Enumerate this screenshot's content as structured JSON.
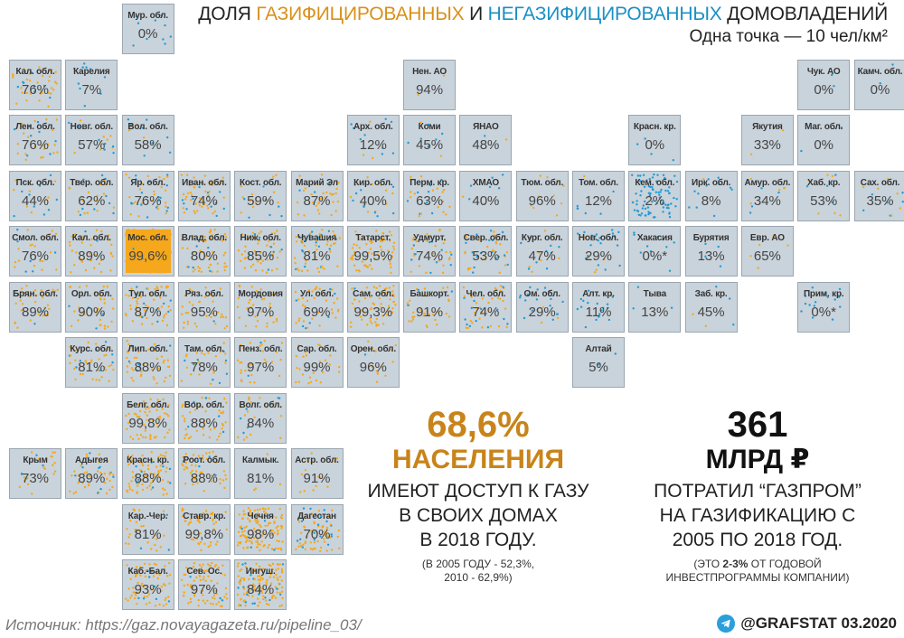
{
  "header": {
    "title_part1": "ДОЛЯ ",
    "title_gas": "ГАЗИФИЦИРОВАННЫХ",
    "title_part2": " И ",
    "title_nogas": "НЕГАЗИФИЦИРОВАННЫХ",
    "title_part3": " ДОМОВЛАДЕНИЙ",
    "subtitle": "Одна точка — 10 чел/км²"
  },
  "colors": {
    "gasified": "#f5a81c",
    "not_gasified": "#1e9bd7",
    "tile_bg": "#c9d3db",
    "accent_orange": "#c8841a"
  },
  "chart_data": {
    "type": "tile-map",
    "value_label": "доля газифицированных домовладений, %",
    "regions": [
      {
        "name": "Мур. обл.",
        "value": "0%",
        "col": 2,
        "row": 0,
        "gas": 0,
        "density": 10
      },
      {
        "name": "Кал. обл.",
        "value": "76%",
        "col": 0,
        "row": 1,
        "gas": 0.76,
        "density": 40
      },
      {
        "name": "Карелия",
        "value": "7%",
        "col": 1,
        "row": 1,
        "gas": 0.07,
        "density": 10
      },
      {
        "name": "Нен. АО",
        "value": "94%",
        "col": 7,
        "row": 1,
        "gas": 0.94,
        "density": 2
      },
      {
        "name": "Чук. АО",
        "value": "0%",
        "col": 14,
        "row": 1,
        "gas": 0,
        "density": 2
      },
      {
        "name": "Камч. обл.",
        "value": "0%",
        "col": 15,
        "row": 1,
        "gas": 0,
        "density": 2
      },
      {
        "name": "Лен. обл.",
        "value": "76%",
        "col": 0,
        "row": 2,
        "gas": 0.76,
        "density": 30
      },
      {
        "name": "Новг. обл.",
        "value": "57%",
        "col": 1,
        "row": 2,
        "gas": 0.57,
        "density": 15
      },
      {
        "name": "Вол. обл.",
        "value": "58%",
        "col": 2,
        "row": 2,
        "gas": 0.58,
        "density": 12
      },
      {
        "name": "Арх. обл.",
        "value": "12%",
        "col": 6,
        "row": 2,
        "gas": 0.12,
        "density": 12
      },
      {
        "name": "Коми",
        "value": "45%",
        "col": 7,
        "row": 2,
        "gas": 0.45,
        "density": 8
      },
      {
        "name": "ЯНАО",
        "value": "48%",
        "col": 8,
        "row": 2,
        "gas": 0.48,
        "density": 2
      },
      {
        "name": "Красн. кр.",
        "value": "0%",
        "col": 11,
        "row": 2,
        "gas": 0,
        "density": 4
      },
      {
        "name": "Якутия",
        "value": "33%",
        "col": 13,
        "row": 2,
        "gas": 0.33,
        "density": 2
      },
      {
        "name": "Маг. обл.",
        "value": "0%",
        "col": 14,
        "row": 2,
        "gas": 0,
        "density": 2
      },
      {
        "name": "Пск. обл.",
        "value": "44%",
        "col": 0,
        "row": 3,
        "gas": 0.44,
        "density": 18
      },
      {
        "name": "Твер. обл.",
        "value": "62%",
        "col": 1,
        "row": 3,
        "gas": 0.62,
        "density": 25
      },
      {
        "name": "Яр. обл.",
        "value": "76%",
        "col": 2,
        "row": 3,
        "gas": 0.76,
        "density": 40
      },
      {
        "name": "Иван. обл.",
        "value": "74%",
        "col": 3,
        "row": 3,
        "gas": 0.74,
        "density": 55
      },
      {
        "name": "Кост. обл.",
        "value": "59%",
        "col": 4,
        "row": 3,
        "gas": 0.59,
        "density": 20
      },
      {
        "name": "Марий Эл",
        "value": "87%",
        "col": 5,
        "row": 3,
        "gas": 0.87,
        "density": 35
      },
      {
        "name": "Кир. обл.",
        "value": "40%",
        "col": 6,
        "row": 3,
        "gas": 0.4,
        "density": 20
      },
      {
        "name": "Перм. кр.",
        "value": "63%",
        "col": 7,
        "row": 3,
        "gas": 0.63,
        "density": 25
      },
      {
        "name": "ХМАО",
        "value": "40%",
        "col": 8,
        "row": 3,
        "gas": 0.4,
        "density": 8
      },
      {
        "name": "Тюм. обл.",
        "value": "96%",
        "col": 9,
        "row": 3,
        "gas": 0.96,
        "density": 10
      },
      {
        "name": "Том. обл.",
        "value": "12%",
        "col": 10,
        "row": 3,
        "gas": 0.12,
        "density": 8
      },
      {
        "name": "Кем. обл.",
        "value": "2%",
        "col": 11,
        "row": 3,
        "gas": 0.02,
        "density": 80
      },
      {
        "name": "Ирк. обл.",
        "value": "8%",
        "col": 12,
        "row": 3,
        "gas": 0.08,
        "density": 12
      },
      {
        "name": "Амур. обл.",
        "value": "34%",
        "col": 13,
        "row": 3,
        "gas": 0.34,
        "density": 10
      },
      {
        "name": "Хаб. кр.",
        "value": "53%",
        "col": 14,
        "row": 3,
        "gas": 0.53,
        "density": 10
      },
      {
        "name": "Сах. обл.",
        "value": "35%",
        "col": 15,
        "row": 3,
        "gas": 0.35,
        "density": 12
      },
      {
        "name": "Смол. обл.",
        "value": "76%",
        "col": 0,
        "row": 4,
        "gas": 0.76,
        "density": 25
      },
      {
        "name": "Кал. обл.",
        "value": "89%",
        "col": 1,
        "row": 4,
        "gas": 0.89,
        "density": 35
      },
      {
        "name": "Мос. обл.",
        "value": "99,6%",
        "col": 2,
        "row": 4,
        "gas": 0.996,
        "density": 300
      },
      {
        "name": "Влад. обл.",
        "value": "80%",
        "col": 3,
        "row": 4,
        "gas": 0.8,
        "density": 50
      },
      {
        "name": "Ниж. обл.",
        "value": "85%",
        "col": 4,
        "row": 4,
        "gas": 0.85,
        "density": 55
      },
      {
        "name": "Чувашия",
        "value": "81%",
        "col": 5,
        "row": 4,
        "gas": 0.81,
        "density": 60
      },
      {
        "name": "Татарст.",
        "value": "99,5%",
        "col": 6,
        "row": 4,
        "gas": 0.995,
        "density": 60
      },
      {
        "name": "Удмурт.",
        "value": "74%",
        "col": 7,
        "row": 4,
        "gas": 0.74,
        "density": 35
      },
      {
        "name": "Свер. обл.",
        "value": "53%",
        "col": 8,
        "row": 4,
        "gas": 0.53,
        "density": 40
      },
      {
        "name": "Кург. обл.",
        "value": "47%",
        "col": 9,
        "row": 4,
        "gas": 0.47,
        "density": 15
      },
      {
        "name": "Нов. обл.",
        "value": "29%",
        "col": 10,
        "row": 4,
        "gas": 0.29,
        "density": 25
      },
      {
        "name": "Хакасия",
        "value": "0%*",
        "col": 11,
        "row": 4,
        "gas": 0,
        "density": 10
      },
      {
        "name": "Бурятия",
        "value": "13%",
        "col": 12,
        "row": 4,
        "gas": 0.13,
        "density": 4
      },
      {
        "name": "Евр. АО",
        "value": "65%",
        "col": 13,
        "row": 4,
        "gas": 0.65,
        "density": 5
      },
      {
        "name": "Брян. обл.",
        "value": "89%",
        "col": 0,
        "row": 5,
        "gas": 0.89,
        "density": 35
      },
      {
        "name": "Орл. обл.",
        "value": "90%",
        "col": 1,
        "row": 5,
        "gas": 0.9,
        "density": 35
      },
      {
        "name": "Тул. обл.",
        "value": "87%",
        "col": 2,
        "row": 5,
        "gas": 0.87,
        "density": 60
      },
      {
        "name": "Ряз. обл.",
        "value": "95%",
        "col": 3,
        "row": 5,
        "gas": 0.95,
        "density": 35
      },
      {
        "name": "Мордовия",
        "value": "97%",
        "col": 4,
        "row": 5,
        "gas": 0.97,
        "density": 30
      },
      {
        "name": "Ул. обл.",
        "value": "69%",
        "col": 5,
        "row": 5,
        "gas": 0.69,
        "density": 40
      },
      {
        "name": "Сам. обл.",
        "value": "99,3%",
        "col": 6,
        "row": 5,
        "gas": 0.993,
        "density": 60
      },
      {
        "name": "Башкорт.",
        "value": "91%",
        "col": 7,
        "row": 5,
        "gas": 0.91,
        "density": 35
      },
      {
        "name": "Чел. обл.",
        "value": "74%",
        "col": 8,
        "row": 5,
        "gas": 0.74,
        "density": 45
      },
      {
        "name": "Ом. обл.",
        "value": "29%",
        "col": 9,
        "row": 5,
        "gas": 0.29,
        "density": 20
      },
      {
        "name": "Алт. кр.",
        "value": "11%",
        "col": 10,
        "row": 5,
        "gas": 0.11,
        "density": 20
      },
      {
        "name": "Тыва",
        "value": "13%",
        "col": 11,
        "row": 5,
        "gas": 0.13,
        "density": 3
      },
      {
        "name": "Заб. кр.",
        "value": "45%",
        "col": 12,
        "row": 5,
        "gas": 0.45,
        "density": 5
      },
      {
        "name": "Прим. кр.",
        "value": "0%*",
        "col": 14,
        "row": 5,
        "gas": 0,
        "density": 15
      },
      {
        "name": "Курс. обл.",
        "value": "81%",
        "col": 1,
        "row": 6,
        "gas": 0.81,
        "density": 40
      },
      {
        "name": "Лип. обл.",
        "value": "88%",
        "col": 2,
        "row": 6,
        "gas": 0.88,
        "density": 45
      },
      {
        "name": "Там. обл.",
        "value": "78%",
        "col": 3,
        "row": 6,
        "gas": 0.78,
        "density": 30
      },
      {
        "name": "Пенз. обл.",
        "value": "97%",
        "col": 4,
        "row": 6,
        "gas": 0.97,
        "density": 30
      },
      {
        "name": "Сар. обл.",
        "value": "99%",
        "col": 5,
        "row": 6,
        "gas": 0.99,
        "density": 25
      },
      {
        "name": "Орен. обл.",
        "value": "96%",
        "col": 6,
        "row": 6,
        "gas": 0.96,
        "density": 15
      },
      {
        "name": "Алтай",
        "value": "5%",
        "col": 10,
        "row": 6,
        "gas": 0.05,
        "density": 3
      },
      {
        "name": "Белг. обл.",
        "value": "99,8%",
        "col": 2,
        "row": 7,
        "gas": 0.998,
        "density": 60
      },
      {
        "name": "Вор. обл.",
        "value": "88%",
        "col": 3,
        "row": 7,
        "gas": 0.88,
        "density": 45
      },
      {
        "name": "Волг. обл.",
        "value": "84%",
        "col": 4,
        "row": 7,
        "gas": 0.84,
        "density": 25
      },
      {
        "name": "Крым",
        "value": "73%",
        "col": 0,
        "row": 8,
        "gas": 0.73,
        "density": 25
      },
      {
        "name": "Адыгея",
        "value": "89%",
        "col": 1,
        "row": 8,
        "gas": 0.89,
        "density": 45
      },
      {
        "name": "Красн. кр.",
        "value": "88%",
        "col": 2,
        "row": 8,
        "gas": 0.88,
        "density": 75
      },
      {
        "name": "Рост. обл.",
        "value": "88%",
        "col": 3,
        "row": 8,
        "gas": 0.88,
        "density": 50
      },
      {
        "name": "Калмык.",
        "value": "81%",
        "col": 4,
        "row": 8,
        "gas": 0.81,
        "density": 4
      },
      {
        "name": "Астр. обл.",
        "value": "91%",
        "col": 5,
        "row": 8,
        "gas": 0.91,
        "density": 15
      },
      {
        "name": "Кар.-Чер.",
        "value": "81%",
        "col": 2,
        "row": 9,
        "gas": 0.81,
        "density": 30
      },
      {
        "name": "Ставр. кр.",
        "value": "99,8%",
        "col": 3,
        "row": 9,
        "gas": 0.998,
        "density": 45
      },
      {
        "name": "Чечня",
        "value": "98%",
        "col": 4,
        "row": 9,
        "gas": 0.98,
        "density": 120
      },
      {
        "name": "Дагестан",
        "value": "70%",
        "col": 5,
        "row": 9,
        "gas": 0.7,
        "density": 70
      },
      {
        "name": "Каб.-Бал.",
        "value": "93%",
        "col": 2,
        "row": 10,
        "gas": 0.93,
        "density": 70
      },
      {
        "name": "Сев. Ос.",
        "value": "97%",
        "col": 3,
        "row": 10,
        "gas": 0.97,
        "density": 80
      },
      {
        "name": "Ингуш.",
        "value": "84%",
        "col": 4,
        "row": 10,
        "gas": 0.84,
        "density": 130
      }
    ]
  },
  "stats": {
    "left_big": "68,6%",
    "left_big2": "НАСЕЛЕНИЯ",
    "left_line1": "ИМЕЮТ ДОСТУП К ГАЗУ",
    "left_line2": "В СВОИХ ДОМАХ",
    "left_line3": "В 2018 ГОДУ.",
    "left_note1": "(В 2005 ГОДУ - 52,3%,",
    "left_note2": "2010 - 62,9%)",
    "right_big": "361",
    "right_big2": "МЛРД ₽",
    "right_line1": "ПОТРАТИЛ “ГАЗПРОМ”",
    "right_line2": "НА ГАЗИФИКАЦИЮ С",
    "right_line3": "2005 ПО 2018 ГОД.",
    "right_note1_a": "(ЭТО ",
    "right_note1_b": "2-3%",
    "right_note1_c": " ОТ ГОДОВОЙ",
    "right_note2": "ИНВЕСТПРОГРАММЫ КОМПАНИИ)"
  },
  "footer": {
    "source": "Источник: https://gaz.novayagazeta.ru/pipeline_03/",
    "credit": "@GRAFSTAT 03.2020",
    "credit_icon": "telegram-icon"
  }
}
